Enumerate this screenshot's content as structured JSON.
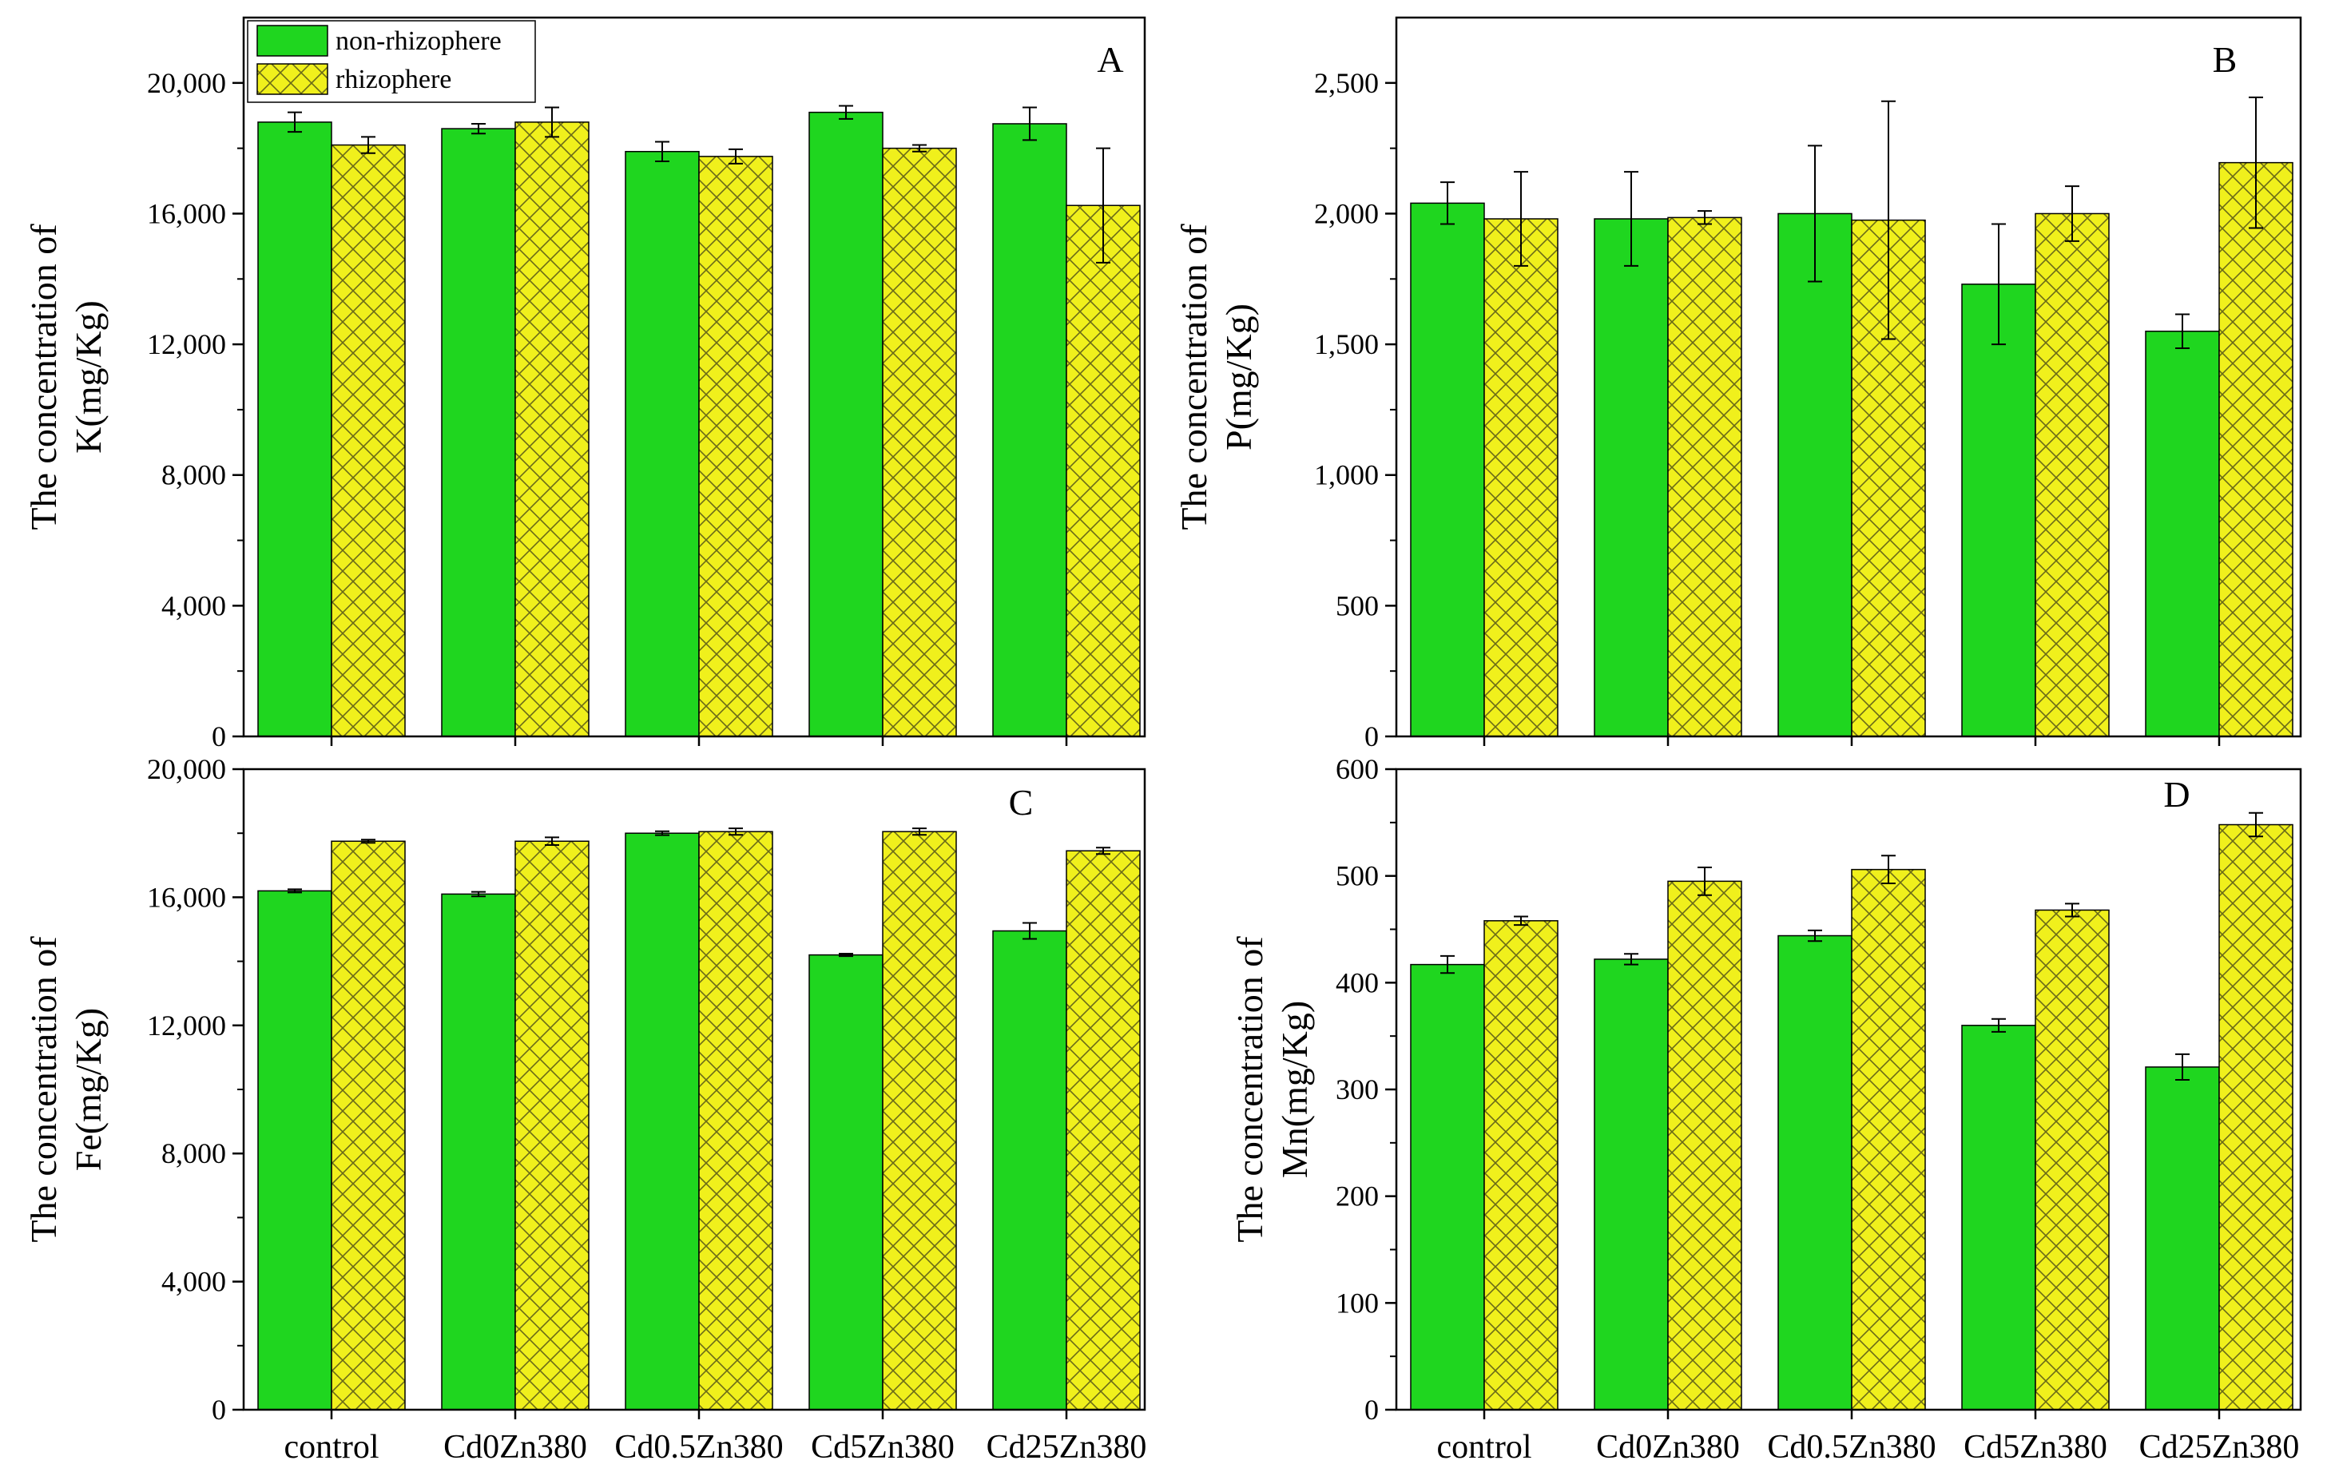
{
  "colors": {
    "non_rhizosphere": "#1fd61f",
    "rhizosphere": "#f0f01c",
    "hatch": "#6b6b18",
    "axis": "#000000"
  },
  "legend": {
    "items": [
      {
        "label": "non-rhizophere",
        "pattern": "solid"
      },
      {
        "label": "rhizophere",
        "pattern": "crosshatch"
      }
    ]
  },
  "chart_data": [
    {
      "type": "bar",
      "panel": "A",
      "ylabel_line1": "The concentration of",
      "ylabel_line2": "K(mg/Kg)",
      "ylim": [
        0,
        22000
      ],
      "yticks": [
        0,
        4000,
        8000,
        12000,
        16000,
        20000
      ],
      "ytick_labels": [
        "0",
        "4,000",
        "8,000",
        "12,000",
        "16,000",
        "20,000"
      ],
      "categories": [
        "control",
        "Cd0Zn380",
        "Cd0.5Zn380",
        "Cd5Zn380",
        "Cd25Zn380"
      ],
      "show_category_labels": false,
      "series": [
        {
          "name": "non-rhizophere",
          "values": [
            18800,
            18600,
            17900,
            19100,
            18750
          ],
          "errors": [
            300,
            150,
            300,
            200,
            500
          ]
        },
        {
          "name": "rhizophere",
          "values": [
            18100,
            18800,
            17750,
            18000,
            16250
          ],
          "errors": [
            250,
            450,
            220,
            100,
            1750
          ]
        }
      ]
    },
    {
      "type": "bar",
      "panel": "B",
      "ylabel_line1": "The concentration of",
      "ylabel_line2": "P(mg/Kg)",
      "ylim": [
        0,
        2750
      ],
      "yticks": [
        0,
        500,
        1000,
        1500,
        2000,
        2500
      ],
      "ytick_labels": [
        "0",
        "500",
        "1,000",
        "1,500",
        "2,000",
        "2,500"
      ],
      "categories": [
        "control",
        "Cd0Zn380",
        "Cd0.5Zn380",
        "Cd5Zn380",
        "Cd25Zn380"
      ],
      "show_category_labels": false,
      "series": [
        {
          "name": "non-rhizophere",
          "values": [
            2040,
            1980,
            2000,
            1730,
            1550
          ],
          "errors": [
            80,
            180,
            260,
            230,
            65
          ]
        },
        {
          "name": "rhizophere",
          "values": [
            1980,
            1985,
            1975,
            2000,
            2195
          ],
          "errors": [
            180,
            25,
            455,
            105,
            250
          ]
        }
      ]
    },
    {
      "type": "bar",
      "panel": "C",
      "ylabel_line1": "The concentration of",
      "ylabel_line2": "Fe(mg/Kg)",
      "ylim": [
        0,
        20000
      ],
      "yticks": [
        0,
        4000,
        8000,
        12000,
        16000,
        20000
      ],
      "ytick_labels": [
        "0",
        "4,000",
        "8,000",
        "12,000",
        "16,000",
        "20,000"
      ],
      "categories": [
        "control",
        "Cd0Zn380",
        "Cd0.5Zn380",
        "Cd5Zn380",
        "Cd25Zn380"
      ],
      "show_category_labels": true,
      "series": [
        {
          "name": "non-rhizophere",
          "values": [
            16200,
            16100,
            18000,
            14200,
            14950
          ],
          "errors": [
            50,
            70,
            60,
            40,
            250
          ]
        },
        {
          "name": "rhizophere",
          "values": [
            17750,
            17750,
            18050,
            18050,
            17450
          ],
          "errors": [
            50,
            120,
            100,
            100,
            100
          ]
        }
      ]
    },
    {
      "type": "bar",
      "panel": "D",
      "ylabel_line1": "The concentration of",
      "ylabel_line2": "Mn(mg/Kg)",
      "ylim": [
        0,
        600
      ],
      "yticks": [
        0,
        100,
        200,
        300,
        400,
        500,
        600
      ],
      "ytick_labels": [
        "0",
        "100",
        "200",
        "300",
        "400",
        "500",
        "600"
      ],
      "categories": [
        "control",
        "Cd0Zn380",
        "Cd0.5Zn380",
        "Cd5Zn380",
        "Cd25Zn380"
      ],
      "show_category_labels": true,
      "series": [
        {
          "name": "non-rhizophere",
          "values": [
            417,
            422,
            444,
            360,
            321
          ],
          "errors": [
            8,
            5,
            5,
            6,
            12
          ]
        },
        {
          "name": "rhizophere",
          "values": [
            458,
            495,
            506,
            468,
            548
          ],
          "errors": [
            4,
            13,
            13,
            6,
            11
          ]
        }
      ]
    }
  ]
}
